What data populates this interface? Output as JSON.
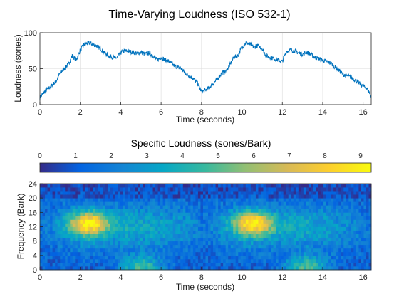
{
  "chart_data": [
    {
      "type": "line",
      "title": "Time-Varying Loudness (ISO 532-1)",
      "xlabel": "Time (seconds)",
      "ylabel": "Loudness (sones)",
      "xlim": [
        0,
        16.4
      ],
      "ylim": [
        0,
        100
      ],
      "xticks": [
        "0",
        "2",
        "4",
        "6",
        "8",
        "10",
        "12",
        "14",
        "16"
      ],
      "yticks": [
        "0",
        "50",
        "100"
      ],
      "grid": true,
      "color": "#0072BD",
      "series": [
        {
          "x": [
            0,
            0.2,
            0.4,
            0.6,
            0.8,
            1.0,
            1.2,
            1.4,
            1.6,
            1.8,
            2.0,
            2.2,
            2.4,
            2.6,
            2.8,
            3.0,
            3.2,
            3.4,
            3.6,
            3.8,
            4.0,
            4.2,
            4.4,
            4.6,
            4.8,
            5.0,
            5.2,
            5.4,
            5.6,
            5.8,
            6.0,
            6.2,
            6.4,
            6.6,
            6.8,
            7.0,
            7.2,
            7.4,
            7.6,
            7.8,
            8.0,
            8.2,
            8.4,
            8.6,
            8.8,
            9.0,
            9.2,
            9.4,
            9.6,
            9.8,
            10.0,
            10.2,
            10.4,
            10.6,
            10.8,
            11.0,
            11.2,
            11.4,
            11.6,
            11.8,
            12.0,
            12.2,
            12.4,
            12.6,
            12.8,
            13.0,
            13.2,
            13.4,
            13.6,
            13.8,
            14.0,
            14.2,
            14.4,
            14.6,
            14.8,
            15.0,
            15.2,
            15.4,
            15.6,
            15.8,
            16.0,
            16.2,
            16.4
          ],
          "y": [
            10,
            17,
            22,
            27,
            32,
            44,
            50,
            56,
            68,
            62,
            76,
            84,
            86,
            84,
            82,
            78,
            72,
            68,
            66,
            65,
            72,
            75,
            74,
            73,
            71,
            73,
            70,
            72,
            68,
            62,
            66,
            62,
            60,
            55,
            52,
            50,
            44,
            40,
            36,
            30,
            18,
            20,
            24,
            30,
            36,
            44,
            46,
            55,
            66,
            68,
            80,
            86,
            84,
            80,
            82,
            78,
            68,
            66,
            64,
            62,
            60,
            74,
            76,
            75,
            72,
            70,
            73,
            70,
            66,
            64,
            62,
            60,
            58,
            52,
            48,
            42,
            40,
            38,
            34,
            30,
            26,
            22,
            12
          ]
        }
      ]
    },
    {
      "type": "heatmap",
      "title": "Specific Loudness (sones/Bark)",
      "xlabel": "Time (seconds)",
      "ylabel": "Frequency (Bark)",
      "xlim": [
        0,
        16.4
      ],
      "ylim": [
        0,
        24
      ],
      "xticks": [
        "0",
        "2",
        "4",
        "6",
        "8",
        "10",
        "12",
        "14",
        "16"
      ],
      "yticks": [
        "0",
        "4",
        "8",
        "12",
        "16",
        "20",
        "24"
      ],
      "colorbar": {
        "ticks": [
          "0",
          "1",
          "2",
          "3",
          "4",
          "5",
          "6",
          "7",
          "8",
          "9"
        ],
        "range": [
          0,
          9.3
        ],
        "location": "top",
        "colormap": "parula"
      },
      "hotspots": [
        {
          "t": 2.4,
          "bark": 13,
          "value": 8.5
        },
        {
          "t": 10.6,
          "bark": 13,
          "value": 8.5
        },
        {
          "t": 5.0,
          "bark": 1,
          "value": 6.5
        },
        {
          "t": 13.2,
          "bark": 1,
          "value": 6.5
        }
      ]
    }
  ]
}
